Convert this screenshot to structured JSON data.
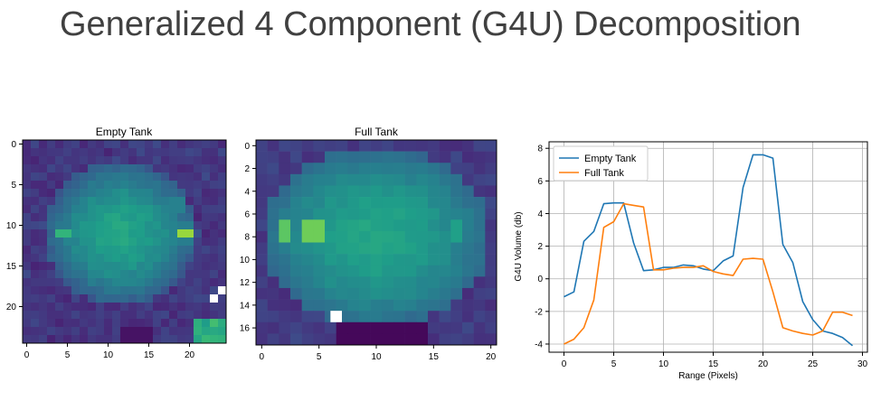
{
  "slide": {
    "title": "Generalized 4 Component (G4U) Decomposition"
  },
  "colors": {
    "empty_tank": "#1f77b4",
    "full_tank": "#ff7f0e",
    "grid": "#b0b0b0",
    "masked_pixel": "#ffffff"
  },
  "chart_data": [
    {
      "type": "heatmap",
      "title": "Empty Tank",
      "colormap": "viridis",
      "cols": 25,
      "rows": 25,
      "x_ticks": [
        "0",
        "5",
        "10",
        "15",
        "20"
      ],
      "y_ticks": [
        "0",
        "5",
        "10",
        "15",
        "20"
      ],
      "features": [
        {
          "note": "bright yellow hotspot",
          "col": 19.5,
          "row": 11,
          "value": 1.0
        },
        {
          "note": "green hotspot",
          "col": 4.5,
          "row": 11,
          "value": 0.72
        },
        {
          "note": "dim pixels (white, no data)",
          "cells": [
            [
              23,
              19
            ],
            [
              24,
              18
            ]
          ]
        }
      ]
    },
    {
      "type": "heatmap",
      "title": "Full Tank",
      "colormap": "viridis",
      "cols": 21,
      "rows": 18,
      "x_ticks": [
        "0",
        "5",
        "10",
        "15",
        "20"
      ],
      "y_ticks": [
        "0",
        "2",
        "4",
        "6",
        "8",
        "10",
        "12",
        "14",
        "16"
      ],
      "features": [
        {
          "note": "bright yellow hotspot",
          "col": 5,
          "row": 8,
          "value": 1.0
        },
        {
          "note": "green region right",
          "col": 17,
          "row": 7.5,
          "value": 0.62
        },
        {
          "note": "dim pixels (white, no data)",
          "cells": [
            [
              7,
              15
            ]
          ]
        }
      ]
    },
    {
      "type": "line",
      "title": "",
      "xlabel": "Range (Pixels)",
      "ylabel": "G4U Volume (db)",
      "xlim": [
        -1.5,
        30.5
      ],
      "ylim": [
        -4.5,
        8.4
      ],
      "x_ticks": [
        0,
        5,
        10,
        15,
        20,
        25,
        30
      ],
      "y_ticks": [
        -4,
        -2,
        0,
        2,
        4,
        6,
        8
      ],
      "grid": true,
      "legend": "top-left",
      "x": [
        0,
        1,
        2,
        3,
        4,
        5,
        6,
        7,
        8,
        9,
        10,
        11,
        12,
        13,
        14,
        15,
        16,
        17,
        18,
        19,
        20,
        21,
        22,
        23,
        24,
        25,
        26,
        27,
        28,
        29
      ],
      "series": [
        {
          "name": "Empty Tank",
          "values": [
            -1.1,
            -0.8,
            2.3,
            2.9,
            4.6,
            4.65,
            4.65,
            2.2,
            0.5,
            0.55,
            0.7,
            0.7,
            0.85,
            0.8,
            0.6,
            0.5,
            1.1,
            1.4,
            5.6,
            7.6,
            7.6,
            7.4,
            2.1,
            1.0,
            -1.4,
            -2.5,
            -3.2,
            -3.35,
            -3.6,
            -4.1
          ]
        },
        {
          "name": "Full Tank",
          "values": [
            -4.0,
            -3.7,
            -3.0,
            -1.3,
            3.15,
            3.5,
            4.6,
            4.5,
            4.4,
            0.55,
            0.55,
            0.65,
            0.7,
            0.7,
            0.8,
            0.45,
            0.3,
            0.2,
            1.2,
            1.25,
            1.2,
            -0.8,
            -3.0,
            -3.2,
            -3.35,
            -3.45,
            -3.2,
            -2.05,
            -2.05,
            -2.25
          ]
        }
      ]
    }
  ]
}
